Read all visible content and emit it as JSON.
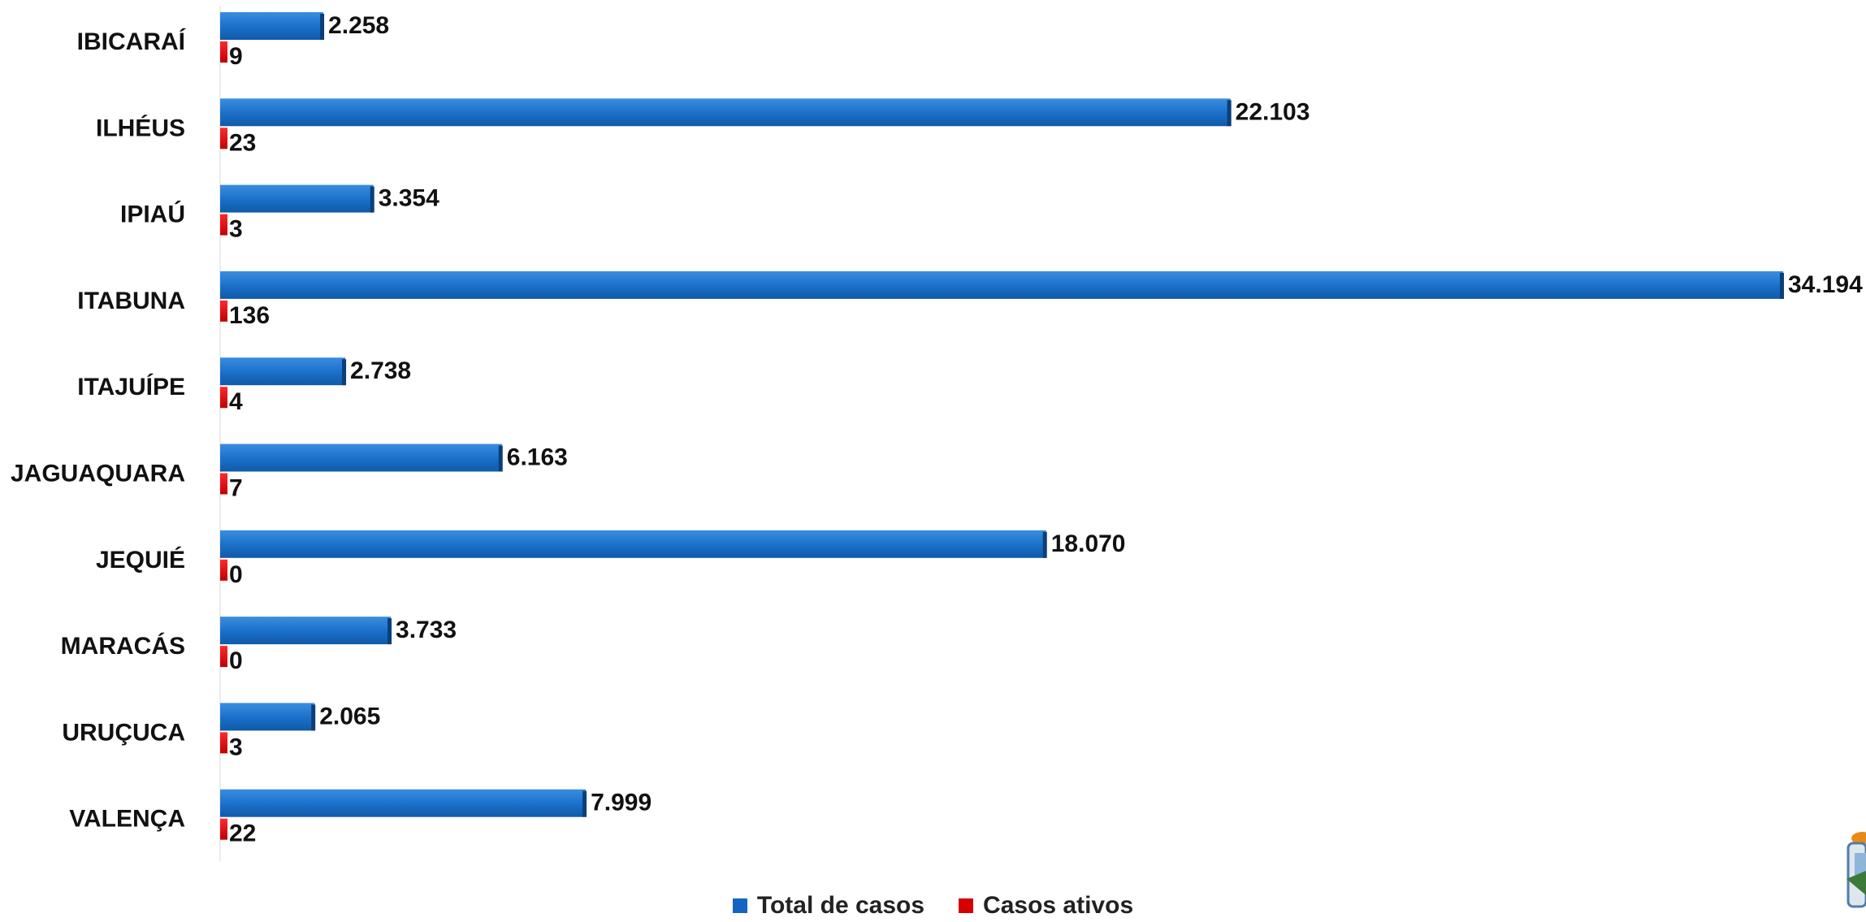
{
  "chart_data": {
    "type": "bar",
    "orientation": "horizontal",
    "categories": [
      "IBICARAÍ",
      "ILHÉUS",
      "IPIAÚ",
      "ITABUNA",
      "ITAJUÍPE",
      "JAGUAQUARA",
      "JEQUIÉ",
      "MARACÁS",
      "URUÇUCA",
      "VALENÇA"
    ],
    "series": [
      {
        "name": "Total de casos",
        "color": "#1565c0",
        "values": [
          2258,
          22103,
          3354,
          34194,
          2738,
          6163,
          18070,
          3733,
          2065,
          7999
        ],
        "labels": [
          "2.258",
          "22.103",
          "3.354",
          "34.194",
          "2.738",
          "6.163",
          "18.070",
          "3.733",
          "2.065",
          "7.999"
        ]
      },
      {
        "name": "Casos ativos",
        "color": "#d60000",
        "values": [
          9,
          23,
          3,
          136,
          4,
          7,
          0,
          0,
          3,
          22
        ],
        "labels": [
          "9",
          "23",
          "3",
          "136",
          "4",
          "7",
          "0",
          "0",
          "3",
          "22"
        ]
      }
    ],
    "xlim": [
      0,
      34194
    ],
    "grid": false,
    "legend_position": "bottom"
  }
}
